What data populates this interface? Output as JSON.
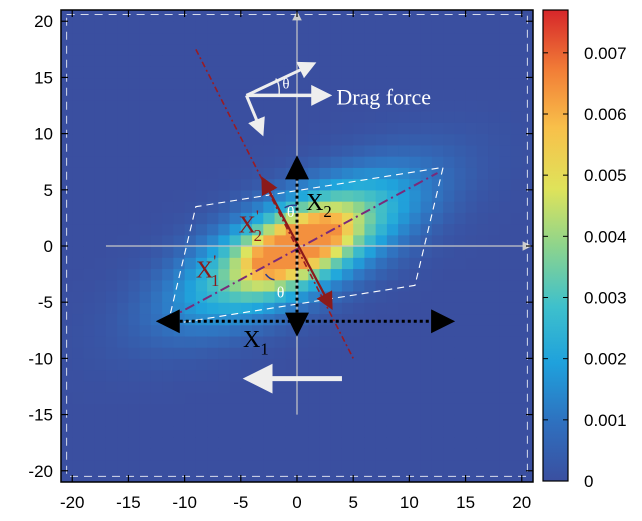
{
  "chart_data": {
    "type": "heatmap",
    "title": "",
    "xlabel": "",
    "ylabel": "",
    "xlim": [
      -21,
      21
    ],
    "ylim": [
      -21,
      21
    ],
    "x_ticks": [
      "-20",
      "-15",
      "-10",
      "-5",
      "0",
      "5",
      "10",
      "15",
      "20"
    ],
    "y_ticks": [
      "-20",
      "-15",
      "-10",
      "-5",
      "0",
      "5",
      "10",
      "15",
      "20"
    ],
    "colorbar": {
      "range": [
        0,
        0.0077
      ],
      "ticks": [
        "0",
        "0.001",
        "0.002",
        "0.003",
        "0.004",
        "0.005",
        "0.006",
        "0.007"
      ],
      "colors": [
        "#3a4fa0",
        "#2f78c4",
        "#1fa6dd",
        "#46c1c4",
        "#8ed48c",
        "#e3e55b",
        "#f8b94a",
        "#f07a37",
        "#d9302a"
      ]
    },
    "density": {
      "background": 0.0,
      "peak_value": 0.0064,
      "peaks": [
        {
          "x": -3,
          "y": -1.5
        },
        {
          "x": 3,
          "y": 1.5
        },
        {
          "x": 0,
          "y": 0
        }
      ],
      "major_axis_angle_deg": 27,
      "extent_major": 26,
      "extent_minor": 9
    },
    "annotations": {
      "drag_force_label": "Drag force",
      "theta": "θ",
      "x1": "X",
      "x1_sub": "1",
      "x2": "X",
      "x2_sub": "2",
      "x1_prime": "X",
      "x1_prime_sub": "1",
      "x1_prime_mark": "'",
      "x2_prime": "X",
      "x2_prime_sub": "2",
      "x2_prime_mark": "'"
    },
    "lines": {
      "x1_prime_axis": {
        "from": [
          -11.5,
          -6.5
        ],
        "to": [
          12.5,
          6.5
        ]
      },
      "x2_prime_axis": {
        "from": [
          -9,
          17.5
        ],
        "to": [
          5,
          -10
        ]
      },
      "x1_arrow": {
        "from": [
          -11.5,
          -6.7
        ],
        "to": [
          13,
          -6.7
        ]
      },
      "x2_arrow": {
        "from": [
          0,
          -7
        ],
        "to": [
          0,
          7
        ]
      },
      "drag_arrow": {
        "from": [
          4,
          -11.8
        ],
        "to": [
          -3.5,
          -11.8
        ]
      },
      "parallelogram": [
        [
          -11.5,
          -7
        ],
        [
          -9,
          3.5
        ],
        [
          13,
          7
        ],
        [
          10.5,
          -3.5
        ]
      ]
    }
  }
}
